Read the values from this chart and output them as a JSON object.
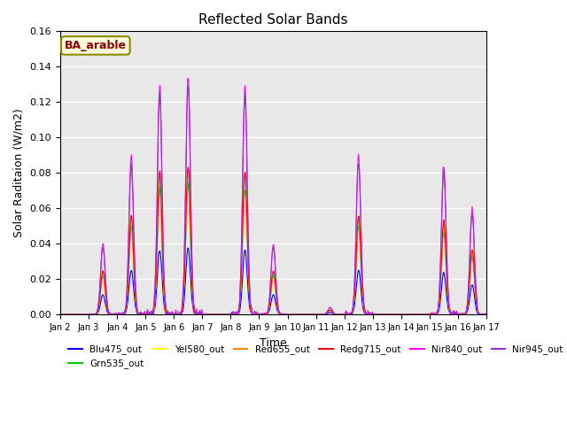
{
  "title": "Reflected Solar Bands",
  "xlabel": "Time",
  "ylabel": "Solar Raditaion (W/m2)",
  "annotation_text": "BA_arable",
  "annotation_color": "#8B0000",
  "annotation_bg": "#FFFFE0",
  "annotation_border": "#8B8B00",
  "ylim": [
    0,
    0.16
  ],
  "bg_color": "#E8E8E8",
  "series": [
    {
      "label": "Blu475_out",
      "color": "#0000FF"
    },
    {
      "label": "Grn535_out",
      "color": "#00CC00"
    },
    {
      "label": "Yel580_out",
      "color": "#FFFF00"
    },
    {
      "label": "Red655_out",
      "color": "#FF8C00"
    },
    {
      "label": "Redg715_out",
      "color": "#FF0000"
    },
    {
      "label": "Nir840_out",
      "color": "#FF00FF"
    },
    {
      "label": "Nir945_out",
      "color": "#9932CC"
    }
  ],
  "xtick_labels": [
    "Jan 2",
    "Jan 3",
    "Jan 4",
    "Jan 5",
    "Jan 6",
    "Jan 7",
    "Jan 8",
    "Jan 9",
    "Jan 10",
    "Jan 11",
    "Jan 12",
    "Jan 13",
    "Jan 14",
    "Jan 15",
    "Jan 16",
    "Jan 17"
  ],
  "n_days": 15,
  "scales": {
    "Blu475_out": 0.28,
    "Grn535_out": 0.55,
    "Yel580_out": 0.62,
    "Red655_out": 0.62,
    "Redg715_out": 0.62,
    "Nir840_out": 1.0,
    "Nir945_out": 0.95
  },
  "day_peaks": [
    0.0,
    0.04,
    0.09,
    0.13,
    0.135,
    0.0,
    0.13,
    0.04,
    0.0,
    0.004,
    0.09,
    0.0,
    0.0,
    0.085,
    0.06
  ]
}
